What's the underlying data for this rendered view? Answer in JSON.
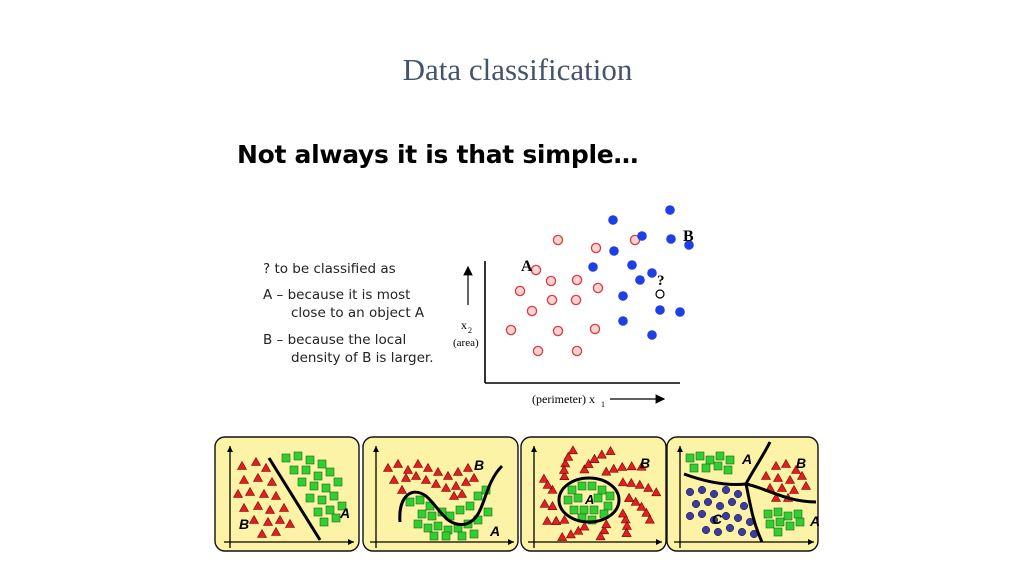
{
  "slide": {
    "title": "Data classification",
    "subtitle": "Not always it is that simple…"
  },
  "legend": {
    "line1": "? to be classified as",
    "line2": "A – because it is most",
    "line3": "close to an object A",
    "line4": "B – because the local",
    "line5": "density of B is larger."
  },
  "scatter": {
    "label_a": "A",
    "label_b": "B",
    "query_mark": "?",
    "y_axis_label": "x",
    "y_axis_sub": "2",
    "y_axis_unit": "(area)",
    "x_axis_label": "(perimeter) x",
    "x_axis_sub": "1"
  },
  "panels": {
    "p1_a": "A",
    "p1_b": "B",
    "p2_a": "A",
    "p2_b": "B",
    "p3_a": "A",
    "p3_b": "B",
    "p4_a": "A",
    "p4_b": "B",
    "p4_a2": "A",
    "p4_c": "C"
  },
  "colors": {
    "title": "#44546a",
    "class_a_fill": "#f7d4d4",
    "class_a_stroke": "#e33b3b",
    "class_b": "#1f3fe6",
    "panel_bg": "#fdf3a6",
    "triangle": "#e02020",
    "square": "#33cc33",
    "circle_c": "#3c3c9c"
  }
}
